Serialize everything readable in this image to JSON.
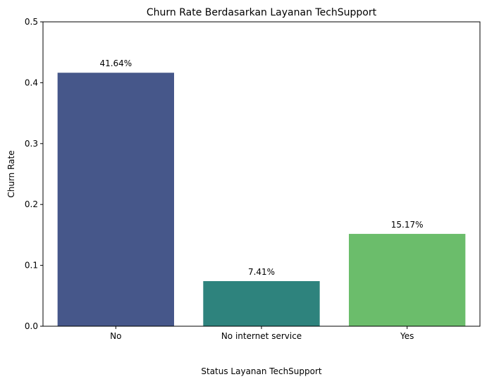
{
  "chart_data": {
    "type": "bar",
    "title": "Churn Rate Berdasarkan Layanan TechSupport",
    "xlabel": "Status Layanan TechSupport",
    "ylabel": "Churn Rate",
    "categories": [
      "No",
      "No internet service",
      "Yes"
    ],
    "values": [
      0.4164,
      0.0741,
      0.1517
    ],
    "data_labels": [
      "41.64%",
      "7.41%",
      "15.17%"
    ],
    "colors": [
      "#46578a",
      "#2e837d",
      "#6bbd6b"
    ],
    "ylim": [
      0,
      0.5
    ],
    "yticks": [
      0.0,
      0.1,
      0.2,
      0.3,
      0.4,
      0.5
    ],
    "ytick_labels": [
      "0.0",
      "0.1",
      "0.2",
      "0.3",
      "0.4",
      "0.5"
    ],
    "grid": false,
    "legend": "none"
  }
}
